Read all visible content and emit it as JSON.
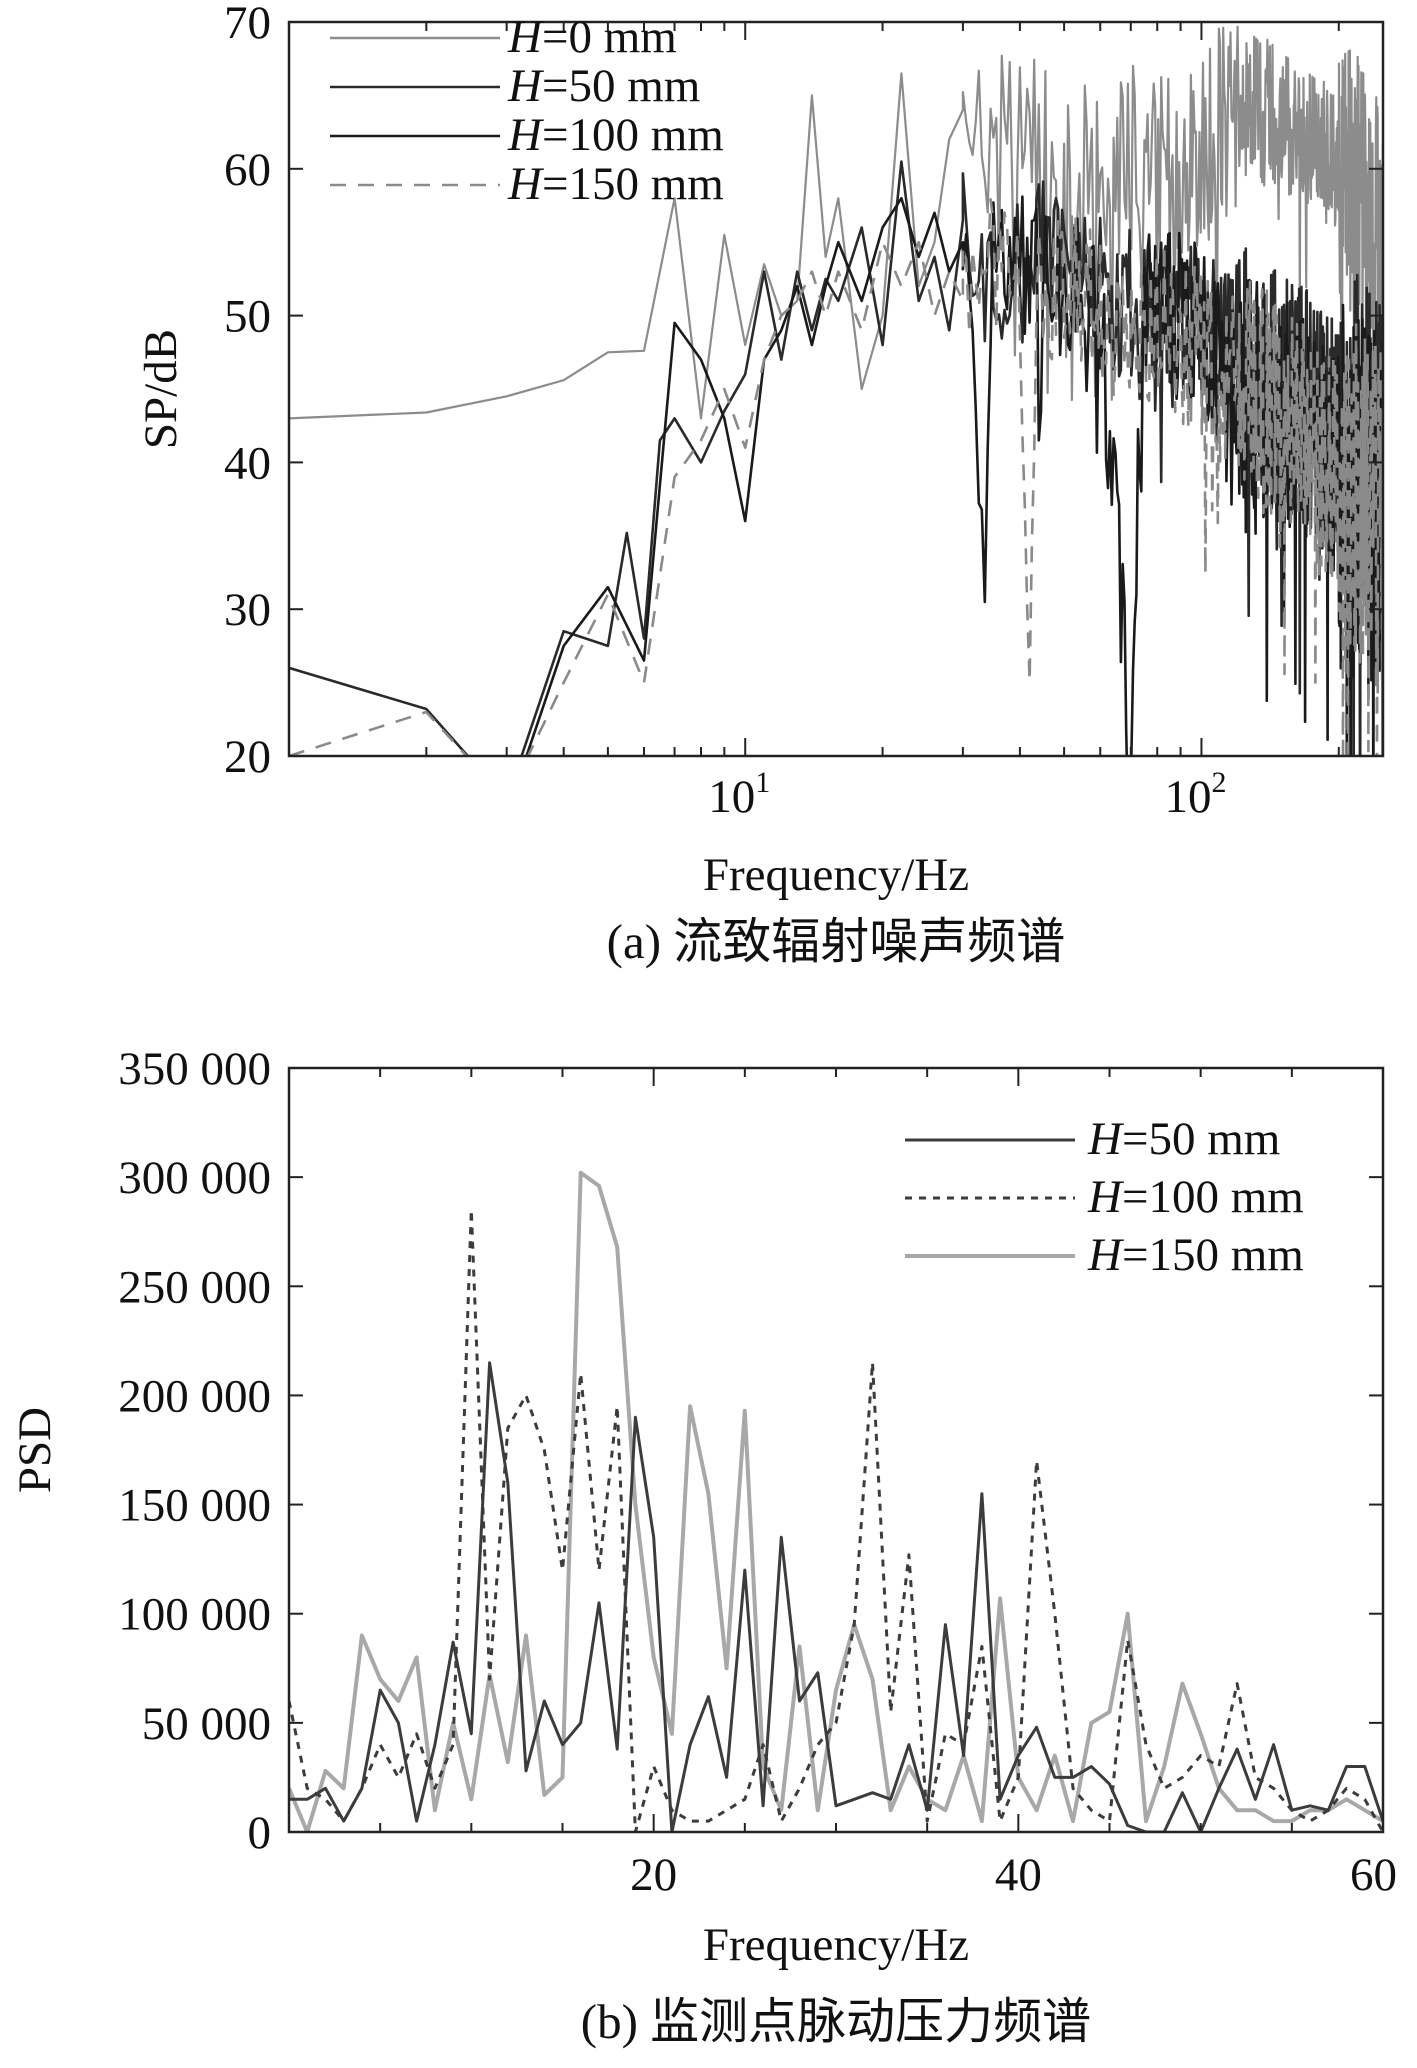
{
  "chart_data": [
    {
      "type": "line",
      "panel": "a",
      "caption": "(a) 流致辐射噪声频谱",
      "xlabel": "Frequency/Hz",
      "ylabel": "SP/dB",
      "xscale": "log",
      "xlim": [
        1.0,
        250
      ],
      "ylim": [
        20,
        70
      ],
      "xticks": [
        {
          "base": "10",
          "exp": "1"
        },
        {
          "base": "10",
          "exp": "2"
        }
      ],
      "yticks": [
        "20",
        "30",
        "40",
        "50",
        "60",
        "70"
      ],
      "legend_position": "top-left",
      "series": [
        {
          "name_var": "H",
          "name_rest": "=0 mm",
          "color": "#8c8c8c",
          "dash": "",
          "anchors": [
            [
              1.0,
              43
            ],
            [
              2.0,
              43.4
            ],
            [
              3.0,
              44.5
            ],
            [
              4.0,
              45.6
            ],
            [
              5.0,
              47.5
            ],
            [
              6.0,
              47.6
            ],
            [
              7.0,
              58
            ],
            [
              8.0,
              43
            ],
            [
              9.0,
              55.5
            ],
            [
              10.0,
              48
            ],
            [
              11.0,
              53.5
            ],
            [
              12.0,
              50
            ],
            [
              13.0,
              51
            ],
            [
              14.0,
              65
            ],
            [
              15.0,
              54
            ],
            [
              16.0,
              58
            ],
            [
              18.0,
              45
            ],
            [
              20.0,
              50
            ],
            [
              22.0,
              66.5
            ],
            [
              24.0,
              52
            ],
            [
              26.0,
              55
            ],
            [
              28.0,
              62
            ],
            [
              30.0,
              64
            ],
            [
              35.0,
              60
            ],
            [
              40.0,
              65
            ],
            [
              50.0,
              58
            ],
            [
              60.0,
              62
            ],
            [
              80.0,
              60
            ],
            [
              100.0,
              62
            ],
            [
              120.0,
              65
            ],
            [
              150.0,
              64
            ],
            [
              180.0,
              62
            ],
            [
              200.0,
              60
            ],
            [
              230.0,
              58
            ],
            [
              250.0,
              57
            ]
          ],
          "noise": [
            0,
            7,
            7,
            5,
            10
          ]
        },
        {
          "name_var": "H",
          "name_rest": "=50 mm",
          "color": "#2a2a2a",
          "dash": "",
          "anchors": [
            [
              1.0,
              26
            ],
            [
              2.0,
              23.2
            ],
            [
              3.0,
              17
            ],
            [
              4.0,
              28.5
            ],
            [
              5.0,
              27.5
            ],
            [
              5.5,
              35.2
            ],
            [
              6.0,
              28
            ],
            [
              6.5,
              41.5
            ],
            [
              7.0,
              43
            ],
            [
              8.0,
              40
            ],
            [
              9.0,
              43.5
            ],
            [
              10.0,
              46
            ],
            [
              11.0,
              53
            ],
            [
              12.0,
              47
            ],
            [
              13.0,
              53
            ],
            [
              14.0,
              49
            ],
            [
              15.0,
              52.5
            ],
            [
              16.0,
              51
            ],
            [
              18.0,
              56
            ],
            [
              20.0,
              48
            ],
            [
              22.0,
              60.5
            ],
            [
              24.0,
              51
            ],
            [
              26.0,
              54
            ],
            [
              28.0,
              49
            ],
            [
              30.0,
              56.5
            ],
            [
              35.0,
              52
            ],
            [
              40.0,
              56
            ],
            [
              50.0,
              54
            ],
            [
              60.0,
              52
            ],
            [
              80.0,
              50
            ],
            [
              100.0,
              51
            ],
            [
              120.0,
              48
            ],
            [
              150.0,
              46
            ],
            [
              180.0,
              44
            ],
            [
              200.0,
              42
            ],
            [
              230.0,
              42
            ],
            [
              250.0,
              40
            ]
          ],
          "noise": [
            0,
            5,
            6,
            8,
            12
          ]
        },
        {
          "name_var": "H",
          "name_rest": "=100 mm",
          "color": "#1a1a1a",
          "dash": "",
          "anchors": [
            [
              1.0,
              20
            ],
            [
              2.0,
              18
            ],
            [
              3.0,
              16
            ],
            [
              4.0,
              27.5
            ],
            [
              5.0,
              31.5
            ],
            [
              6.0,
              26.5
            ],
            [
              7.0,
              49.5
            ],
            [
              8.0,
              47
            ],
            [
              9.0,
              43
            ],
            [
              10.0,
              36
            ],
            [
              11.0,
              47
            ],
            [
              12.0,
              49
            ],
            [
              13.0,
              52
            ],
            [
              14.0,
              48
            ],
            [
              15.0,
              52
            ],
            [
              16.0,
              55
            ],
            [
              18.0,
              51
            ],
            [
              20.0,
              56
            ],
            [
              22.0,
              58
            ],
            [
              24.0,
              54
            ],
            [
              26.0,
              57
            ],
            [
              28.0,
              53
            ],
            [
              30.0,
              55
            ],
            [
              33.0,
              35
            ],
            [
              35.0,
              55
            ],
            [
              40.0,
              54
            ],
            [
              50.0,
              52
            ],
            [
              60.0,
              53
            ],
            [
              70.0,
              20
            ],
            [
              75.0,
              52
            ],
            [
              100.0,
              50
            ],
            [
              120.0,
              46
            ],
            [
              150.0,
              44
            ],
            [
              180.0,
              42
            ],
            [
              200.0,
              40
            ],
            [
              230.0,
              38
            ],
            [
              250.0,
              38
            ]
          ],
          "noise": [
            0,
            5,
            6,
            8,
            13
          ]
        },
        {
          "name_var": "H",
          "name_rest": "=150 mm",
          "color": "#8a8a8a",
          "dash": "16,12",
          "anchors": [
            [
              1.0,
              20
            ],
            [
              2.0,
              23
            ],
            [
              3.0,
              17
            ],
            [
              4.0,
              25
            ],
            [
              5.0,
              31
            ],
            [
              6.0,
              25
            ],
            [
              7.0,
              39
            ],
            [
              8.0,
              41.5
            ],
            [
              9.0,
              45
            ],
            [
              10.0,
              41
            ],
            [
              11.0,
              47
            ],
            [
              12.0,
              50
            ],
            [
              13.0,
              51
            ],
            [
              14.0,
              53
            ],
            [
              15.0,
              50
            ],
            [
              16.0,
              53
            ],
            [
              18.0,
              49
            ],
            [
              20.0,
              55
            ],
            [
              22.0,
              52
            ],
            [
              24.0,
              55
            ],
            [
              26.0,
              50
            ],
            [
              28.0,
              53
            ],
            [
              30.0,
              51
            ],
            [
              35.0,
              54
            ],
            [
              40.0,
              52
            ],
            [
              42.0,
              30
            ],
            [
              44.0,
              52
            ],
            [
              50.0,
              53
            ],
            [
              60.0,
              51
            ],
            [
              80.0,
              50
            ],
            [
              100.0,
              48
            ],
            [
              120.0,
              46
            ],
            [
              150.0,
              44
            ],
            [
              180.0,
              42
            ],
            [
              200.0,
              40
            ],
            [
              230.0,
              38
            ],
            [
              250.0,
              37
            ]
          ],
          "noise": [
            0,
            5,
            6,
            8,
            12
          ]
        }
      ]
    },
    {
      "type": "line",
      "panel": "b",
      "caption": "(b) 监测点脉动压力频谱",
      "xlabel": "Frequency/Hz",
      "ylabel": "PSD",
      "xscale": "linear",
      "xlim": [
        0,
        60
      ],
      "ylim": [
        0,
        350000
      ],
      "xticks": [
        "20",
        "40",
        "60"
      ],
      "yticks": [
        "0",
        "50 000",
        "100 000",
        "150 000",
        "200 000",
        "250 000",
        "300 000",
        "350 000"
      ],
      "legend_position": "top-right",
      "series": [
        {
          "name_var": "H",
          "name_rest": "=50 mm",
          "color": "#3c3c3c",
          "dash": "",
          "x": [
            0,
            1,
            2,
            3,
            4,
            5,
            6,
            7,
            8,
            9,
            10,
            11,
            12,
            13,
            14,
            15,
            16,
            17,
            18,
            19,
            20,
            21,
            22,
            23,
            24,
            25,
            26,
            27,
            28,
            29,
            30,
            31,
            32,
            33,
            34,
            35,
            36,
            37,
            38,
            39,
            40,
            41,
            42,
            43,
            44,
            45,
            46,
            47,
            48,
            49,
            50,
            51,
            52,
            53,
            54,
            55,
            56,
            57,
            58,
            59,
            60
          ],
          "values": [
            15000,
            15000,
            20000,
            5000,
            20000,
            65000,
            50000,
            5000,
            40000,
            87000,
            45000,
            215000,
            160000,
            28000,
            60000,
            40000,
            50000,
            105000,
            38000,
            190000,
            135000,
            0,
            40000,
            62000,
            25000,
            120000,
            12000,
            135000,
            60000,
            73000,
            12000,
            15000,
            18000,
            15000,
            40000,
            10000,
            95000,
            35000,
            155000,
            15000,
            35000,
            48000,
            25000,
            25000,
            30000,
            22000,
            3000,
            0,
            0,
            18000,
            0,
            20000,
            38000,
            15000,
            40000,
            10000,
            12000,
            10000,
            30000,
            30000,
            5000
          ]
        },
        {
          "name_var": "H",
          "name_rest": "=100 mm",
          "color": "#3c3c3c",
          "dash": "7,7",
          "x": [
            0,
            1,
            2,
            3,
            4,
            5,
            6,
            7,
            8,
            9,
            10,
            11,
            12,
            13,
            14,
            15,
            16,
            17,
            18,
            19,
            20,
            21,
            22,
            23,
            24,
            25,
            26,
            27,
            28,
            29,
            30,
            31,
            32,
            33,
            34,
            35,
            36,
            37,
            38,
            39,
            40,
            41,
            42,
            43,
            44,
            45,
            46,
            47,
            48,
            49,
            50,
            51,
            52,
            53,
            54,
            55,
            56,
            57,
            58,
            59,
            60
          ],
          "values": [
            60000,
            20000,
            15000,
            5000,
            20000,
            40000,
            25000,
            45000,
            20000,
            40000,
            285000,
            70000,
            185000,
            200000,
            175000,
            120000,
            210000,
            120000,
            195000,
            0,
            30000,
            10000,
            5000,
            5000,
            10000,
            15000,
            40000,
            5000,
            20000,
            40000,
            50000,
            95000,
            215000,
            55000,
            127000,
            5000,
            45000,
            40000,
            85000,
            5000,
            25000,
            170000,
            100000,
            20000,
            10000,
            5000,
            88000,
            40000,
            20000,
            25000,
            35000,
            30000,
            68000,
            25000,
            20000,
            10000,
            5000,
            10000,
            20000,
            15000,
            0
          ]
        },
        {
          "name_var": "H",
          "name_rest": "=150 mm",
          "color": "#a8a8a8",
          "dash": "",
          "x": [
            0,
            1,
            2,
            3,
            4,
            5,
            6,
            7,
            8,
            9,
            10,
            11,
            12,
            13,
            14,
            15,
            16,
            17,
            18,
            19,
            20,
            21,
            22,
            23,
            24,
            25,
            26,
            27,
            28,
            29,
            30,
            31,
            32,
            33,
            34,
            35,
            36,
            37,
            38,
            39,
            40,
            41,
            42,
            43,
            44,
            45,
            46,
            47,
            48,
            49,
            50,
            51,
            52,
            53,
            54,
            55,
            56,
            57,
            58,
            59,
            60
          ],
          "values": [
            20000,
            0,
            28000,
            20000,
            90000,
            70000,
            60000,
            80000,
            10000,
            50000,
            15000,
            72000,
            32000,
            90000,
            17000,
            25000,
            302000,
            296000,
            268000,
            150000,
            80000,
            45000,
            195000,
            155000,
            75000,
            193000,
            30000,
            10000,
            85000,
            10000,
            65000,
            95000,
            70000,
            10000,
            30000,
            15000,
            10000,
            35000,
            5000,
            107000,
            25000,
            10000,
            35000,
            5000,
            50000,
            55000,
            100000,
            5000,
            30000,
            68000,
            45000,
            20000,
            10000,
            10000,
            5000,
            5000,
            10000,
            10000,
            15000,
            10000,
            5000
          ]
        }
      ]
    }
  ]
}
